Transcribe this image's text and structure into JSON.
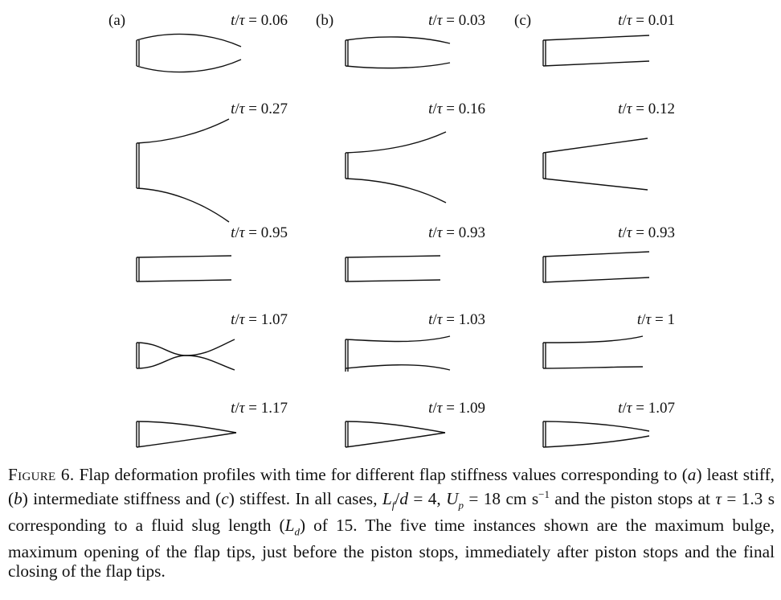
{
  "panels": [
    {
      "label": "(a)",
      "label_letter": "a",
      "profiles": [
        {
          "t": "0.06",
          "shape": "bulge"
        },
        {
          "t": "0.27",
          "shape": "opening-wide"
        },
        {
          "t": "0.95",
          "shape": "near-straight"
        },
        {
          "t": "1.07",
          "shape": "pinch"
        },
        {
          "t": "1.17",
          "shape": "closing-point"
        }
      ]
    },
    {
      "label": "(b)",
      "label_letter": "b",
      "profiles": [
        {
          "t": "0.03",
          "shape": "slight-bulge"
        },
        {
          "t": "0.16",
          "shape": "opening-medium"
        },
        {
          "t": "0.93",
          "shape": "near-straight"
        },
        {
          "t": "1.03",
          "shape": "slight-pinch"
        },
        {
          "t": "1.09",
          "shape": "closing-point"
        }
      ]
    },
    {
      "label": "(c)",
      "label_letter": "c",
      "profiles": [
        {
          "t": "0.01",
          "shape": "straight"
        },
        {
          "t": "0.12",
          "shape": "opening-straight"
        },
        {
          "t": "0.93",
          "shape": "straight"
        },
        {
          "t": "1",
          "shape": "slight-taper"
        },
        {
          "t": "1.07",
          "shape": "closing-taper"
        }
      ]
    }
  ],
  "caption": {
    "figure_label": "Figure 6.",
    "text_1": "Flap deformation profiles with time for different flap stiffness values corresponding to (",
    "a": "a",
    "text_2": ") least stiff, (",
    "b": "b",
    "text_3": ") intermediate stiffness and (",
    "c": "c",
    "text_4": ") stiffest. In all cases,",
    "eq1": "L_f/d = 4,",
    "eq2": "U_p = 18 cm s⁻¹",
    "text_5": "and the piston stops at",
    "eq3": "τ = 1.3 s",
    "text_6": "corresponding to a fluid slug length (",
    "eq4": "L_d",
    "text_7": ") of 15. The five time instances shown are the maximum bulge, maximum opening of the flap tips, just before the piston stops, immediately after piston stops and the final closing of the flap tips."
  }
}
